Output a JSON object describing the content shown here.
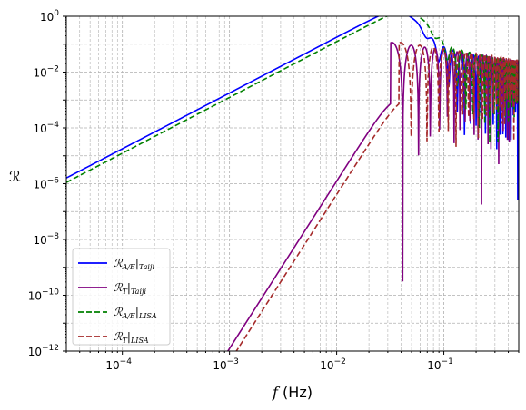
{
  "chart_data": {
    "type": "line",
    "title": "",
    "xlabel": "f (Hz)",
    "ylabel": "ℛ",
    "xscale": "log",
    "yscale": "log",
    "xlim": [
      3e-05,
      0.5
    ],
    "ylim": [
      1e-12,
      1
    ],
    "grid": "both (major and minor), dashed",
    "legend_position": "lower-left",
    "x_ticks": [
      {
        "value": 0.0001,
        "label": "10",
        "exp": "−4"
      },
      {
        "value": 0.001,
        "label": "10",
        "exp": "−3"
      },
      {
        "value": 0.01,
        "label": "10",
        "exp": "−2"
      },
      {
        "value": 0.1,
        "label": "10",
        "exp": "−1"
      }
    ],
    "y_ticks": [
      {
        "value": 1,
        "label": "10",
        "exp": "0"
      },
      {
        "value": 0.01,
        "label": "10",
        "exp": "−2"
      },
      {
        "value": 0.0001,
        "label": "10",
        "exp": "−4"
      },
      {
        "value": 1e-06,
        "label": "10",
        "exp": "−6"
      },
      {
        "value": 1e-08,
        "label": "10",
        "exp": "−8"
      },
      {
        "value": 1e-10,
        "label": "10",
        "exp": "−10"
      },
      {
        "value": 1e-12,
        "label": "10",
        "exp": "−12"
      }
    ],
    "series": [
      {
        "name": "ℛA/E|Taiji",
        "main": "ℛ",
        "sub": "A/E",
        "bar_sub": "Taiji",
        "color": "#0000ff",
        "dash": "",
        "model": "AE",
        "fstar": 0.0159,
        "peak": 0.85,
        "amp_low": 0.45
      },
      {
        "name": "ℛT|Taiji",
        "main": "ℛ",
        "sub": "T",
        "bar_sub": "Taiji",
        "color": "#800080",
        "dash": "",
        "model": "T",
        "fstar": 0.0159,
        "peak": 0.065,
        "amp_low": 0.45
      },
      {
        "name": "ℛA/E|LISA",
        "main": "ℛ",
        "sub": "A/E",
        "bar_sub": "LISA",
        "color": "#008000",
        "dash": "6,3",
        "model": "AE",
        "fstar": 0.0191,
        "peak": 0.85,
        "amp_low": 0.45
      },
      {
        "name": "ℛT|LISA",
        "main": "ℛ",
        "sub": "T",
        "bar_sub": "LISA",
        "color": "#a52a2a",
        "dash": "6,3",
        "model": "T",
        "fstar": 0.0191,
        "peak": 0.065,
        "amp_low": 0.45
      }
    ]
  }
}
